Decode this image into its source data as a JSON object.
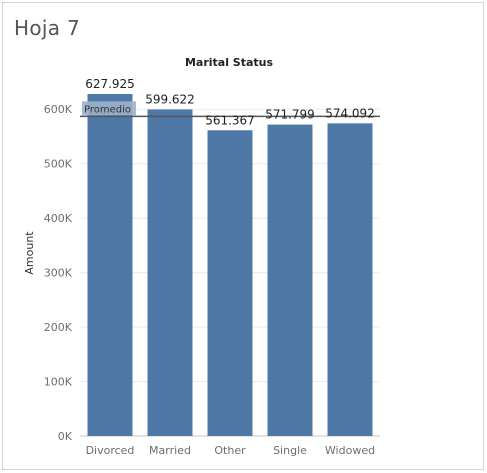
{
  "sheet_title": "Hoja 7",
  "chart_data": {
    "type": "bar",
    "title": "Marital Status",
    "ylabel": "Amount",
    "xlabel": "",
    "categories": [
      "Divorced",
      "Married",
      "Other",
      "Single",
      "Widowed"
    ],
    "values": [
      627925,
      599622,
      561367,
      571799,
      574092
    ],
    "value_labels": [
      "627.925",
      "599.622",
      "561.367",
      "571.799",
      "574.092"
    ],
    "ylim": [
      0,
      650000
    ],
    "yticks": [
      0,
      100000,
      200000,
      300000,
      400000,
      500000,
      600000
    ],
    "ytick_labels": [
      "0K",
      "100K",
      "200K",
      "300K",
      "400K",
      "500K",
      "600K"
    ],
    "grid": true,
    "bar_color": "#4e79a7",
    "reference_line": {
      "label": "Promedio",
      "value": 586961
    }
  }
}
